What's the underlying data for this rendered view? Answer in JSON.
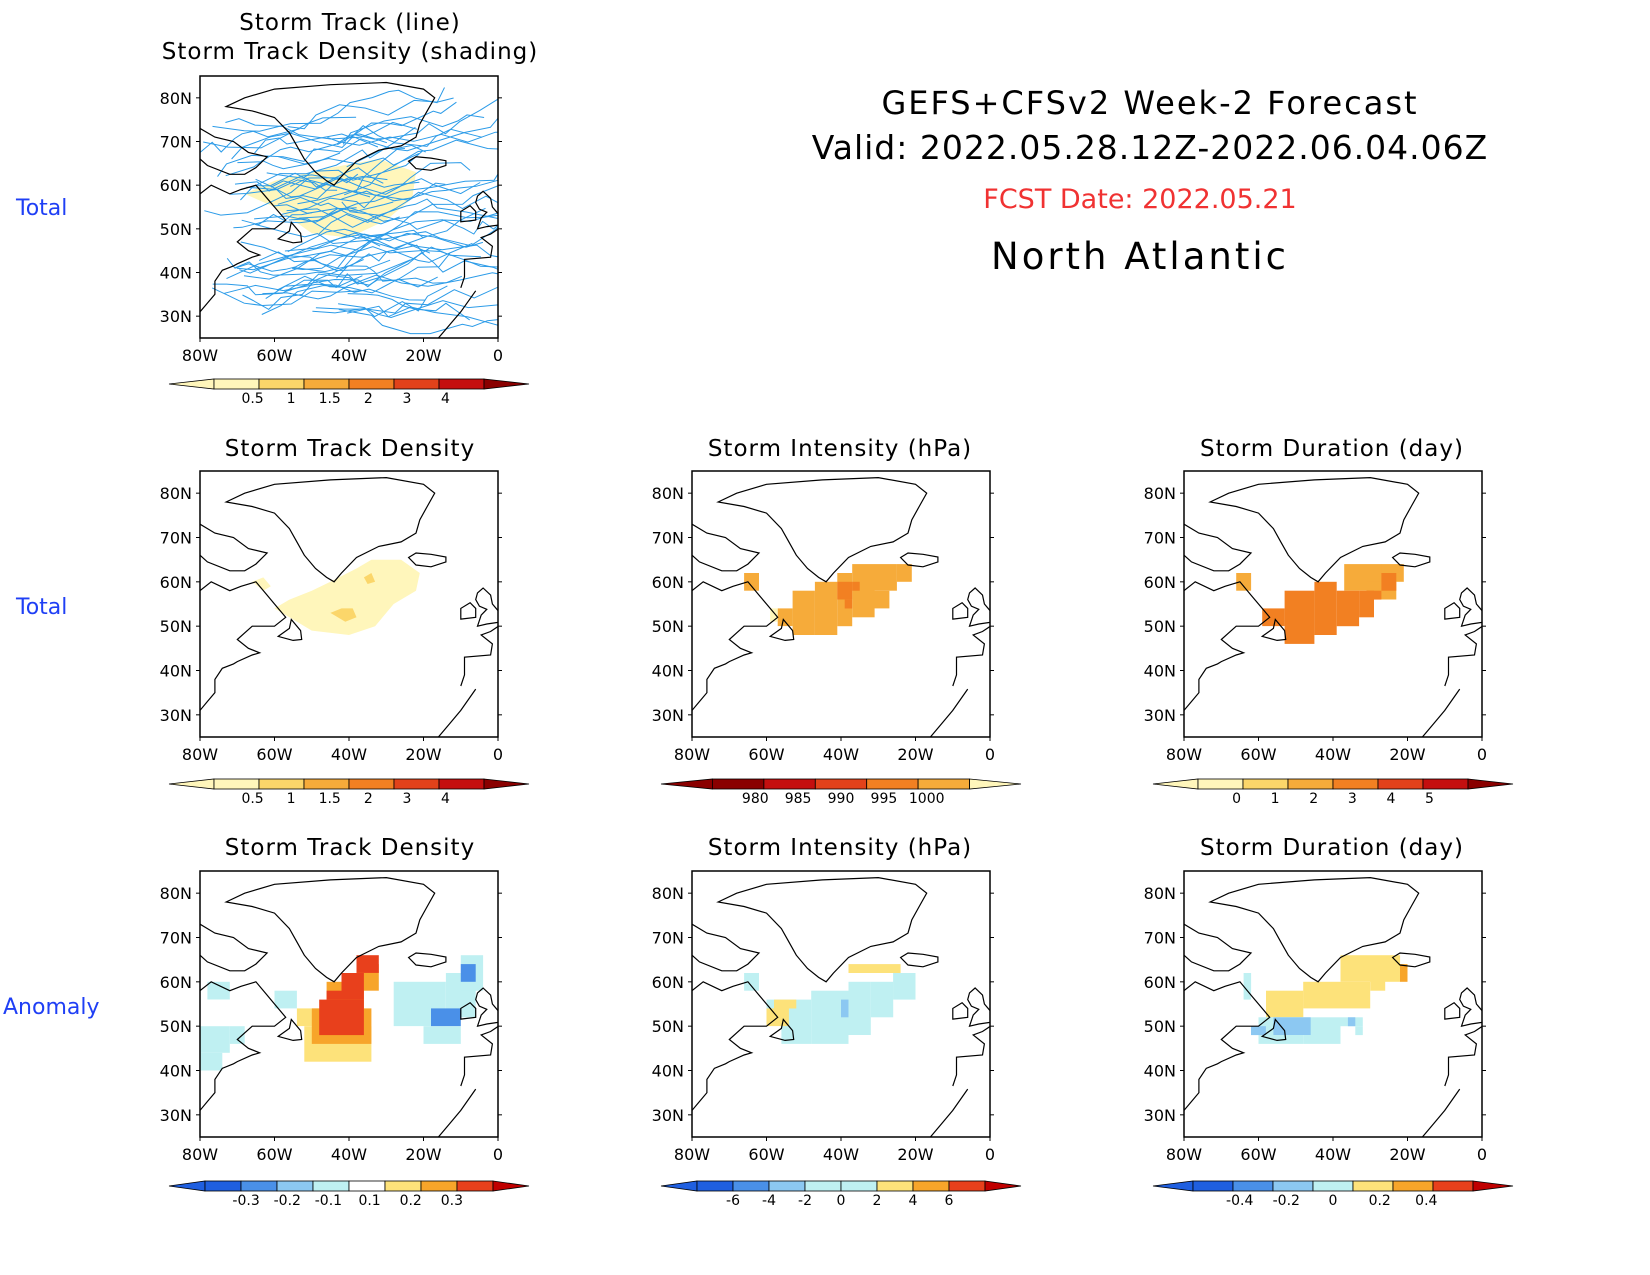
{
  "header": {
    "title": "GEFS+CFSv2 Week-2 Forecast",
    "valid": "Valid: 2022.05.28.12Z-2022.06.04.06Z",
    "fcst_date": "FCST Date: 2022.05.21",
    "region": "North Atlantic",
    "fcst_color": "#f03232"
  },
  "row_labels": [
    "Total",
    "Total",
    "Anomaly"
  ],
  "axes": {
    "lat_ticks": [
      "80N",
      "70N",
      "60N",
      "50N",
      "40N",
      "30N"
    ],
    "lon_ticks": [
      "80W",
      "60W",
      "40W",
      "20W",
      "0"
    ]
  },
  "panels": {
    "track": {
      "title1": "Storm Track (line)",
      "title2": "Storm Track Density (shading)"
    },
    "density_total": {
      "title": "Storm Track Density"
    },
    "intensity_total": {
      "title": "Storm Intensity (hPa)"
    },
    "duration_total": {
      "title": "Storm Duration (day)"
    },
    "density_anom": {
      "title": "Storm Track Density"
    },
    "intensity_anom": {
      "title": "Storm Intensity (hPa)"
    },
    "duration_anom": {
      "title": "Storm Duration (day)"
    }
  },
  "colorbars": {
    "density_total": {
      "labels": [
        "0.5",
        "1",
        "1.5",
        "2",
        "3",
        "4"
      ],
      "colors": [
        "#fff6bb",
        "#fbd66a",
        "#f6ab3a",
        "#f28022",
        "#e2421a",
        "#c40f0f",
        "#8a0000"
      ]
    },
    "intensity_total": {
      "labels": [
        "980",
        "985",
        "990",
        "995",
        "1000"
      ],
      "colors": [
        "#8a0000",
        "#c40f0f",
        "#e2421a",
        "#f28022",
        "#f6ab3a",
        "#fff6bb"
      ]
    },
    "duration_total": {
      "labels": [
        "0",
        "1",
        "2",
        "3",
        "4",
        "5"
      ],
      "colors": [
        "#fff6bb",
        "#fbd66a",
        "#f6ab3a",
        "#f28022",
        "#e2421a",
        "#c40f0f",
        "#8a0000"
      ]
    },
    "density_anom": {
      "labels": [
        "-0.3",
        "-0.2",
        "-0.1",
        "0.1",
        "0.2",
        "0.3"
      ],
      "colors": [
        "#1f5fe0",
        "#4a90e8",
        "#8cc8f2",
        "#bff0f2",
        "#ffffff",
        "#fde27a",
        "#f7a52a",
        "#e8401c",
        "#c00000"
      ]
    },
    "intensity_anom": {
      "labels": [
        "-6",
        "-4",
        "-2",
        "0",
        "2",
        "4",
        "6"
      ],
      "colors": [
        "#1f5fe0",
        "#4a90e8",
        "#8cc8f2",
        "#bff0f2",
        "#bff0f2",
        "#fde27a",
        "#f7a52a",
        "#e8401c",
        "#c00000"
      ]
    },
    "duration_anom": {
      "labels": [
        "-0.4",
        "-0.2",
        "0",
        "0.2",
        "0.4"
      ],
      "colors": [
        "#1f5fe0",
        "#4a90e8",
        "#8cc8f2",
        "#bff0f2",
        "#fde27a",
        "#f7a52a",
        "#e8401c",
        "#c00000"
      ]
    }
  },
  "chart_data": [
    {
      "type": "heatmap",
      "panel": "track",
      "title": "Storm Track (line) / Storm Track Density (shading)",
      "xlim": [
        -80,
        0
      ],
      "ylim": [
        25,
        85
      ],
      "legend_levels": [
        0.5,
        1,
        1.5,
        2,
        3,
        4
      ]
    },
    {
      "type": "heatmap",
      "panel": "density_total",
      "title": "Storm Track Density",
      "xlim": [
        -80,
        0
      ],
      "ylim": [
        25,
        85
      ],
      "legend_levels": [
        0.5,
        1,
        1.5,
        2,
        3,
        4
      ]
    },
    {
      "type": "heatmap",
      "panel": "intensity_total",
      "title": "Storm Intensity (hPa)",
      "xlim": [
        -80,
        0
      ],
      "ylim": [
        25,
        85
      ],
      "legend_levels": [
        980,
        985,
        990,
        995,
        1000
      ]
    },
    {
      "type": "heatmap",
      "panel": "duration_total",
      "title": "Storm Duration (day)",
      "xlim": [
        -80,
        0
      ],
      "ylim": [
        25,
        85
      ],
      "legend_levels": [
        0,
        1,
        2,
        3,
        4,
        5
      ]
    },
    {
      "type": "heatmap",
      "panel": "density_anom",
      "title": "Storm Track Density",
      "xlim": [
        -80,
        0
      ],
      "ylim": [
        25,
        85
      ],
      "legend_levels": [
        -0.3,
        -0.2,
        -0.1,
        0.1,
        0.2,
        0.3
      ]
    },
    {
      "type": "heatmap",
      "panel": "intensity_anom",
      "title": "Storm Intensity (hPa)",
      "xlim": [
        -80,
        0
      ],
      "ylim": [
        25,
        85
      ],
      "legend_levels": [
        -6,
        -4,
        -2,
        0,
        2,
        4,
        6
      ]
    },
    {
      "type": "heatmap",
      "panel": "duration_anom",
      "title": "Storm Duration (day)",
      "xlim": [
        -80,
        0
      ],
      "ylim": [
        25,
        85
      ],
      "legend_levels": [
        -0.4,
        -0.2,
        0,
        0.2,
        0.4
      ]
    }
  ]
}
